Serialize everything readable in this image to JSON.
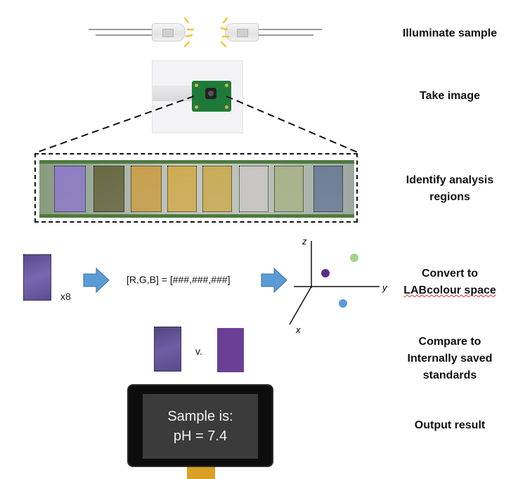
{
  "steps": [
    {
      "id": "illuminate",
      "lines": [
        "Illuminate sample"
      ]
    },
    {
      "id": "take-image",
      "lines": [
        "Take image"
      ]
    },
    {
      "id": "identify",
      "lines": [
        "Identify analysis",
        "regions"
      ]
    },
    {
      "id": "convert",
      "lines": [
        "Convert to",
        "LABcolour space"
      ]
    },
    {
      "id": "compare",
      "lines": [
        "Compare to",
        "Internally saved",
        "standards"
      ]
    },
    {
      "id": "output",
      "lines": [
        "Output result"
      ]
    }
  ],
  "convert_row": {
    "multiplier": "x8",
    "formula": "[R,G,B] = [###,###,###]"
  },
  "axes": {
    "x": "x",
    "y": "y",
    "z": "z"
  },
  "compare_row": {
    "versus": "v."
  },
  "screen": {
    "line1": "Sample is:",
    "line2": "pH = 7.4"
  },
  "colors": {
    "arrow": "#5b9bd5",
    "sample_purple": "#6b5aa0",
    "standard_purple": "#6a3f94",
    "dot_purple": "#5b2d86",
    "dot_green": "#a8d08d",
    "dot_blue": "#5b9bd5",
    "led_glow": "#f4c542"
  },
  "strip_pad_colors": [
    "#8e7ec4",
    "#6b6a45",
    "#c9a04e",
    "#cfac54",
    "#c9ad58",
    "#c8c6c4",
    "#a9b38b",
    "#6e7f98"
  ]
}
